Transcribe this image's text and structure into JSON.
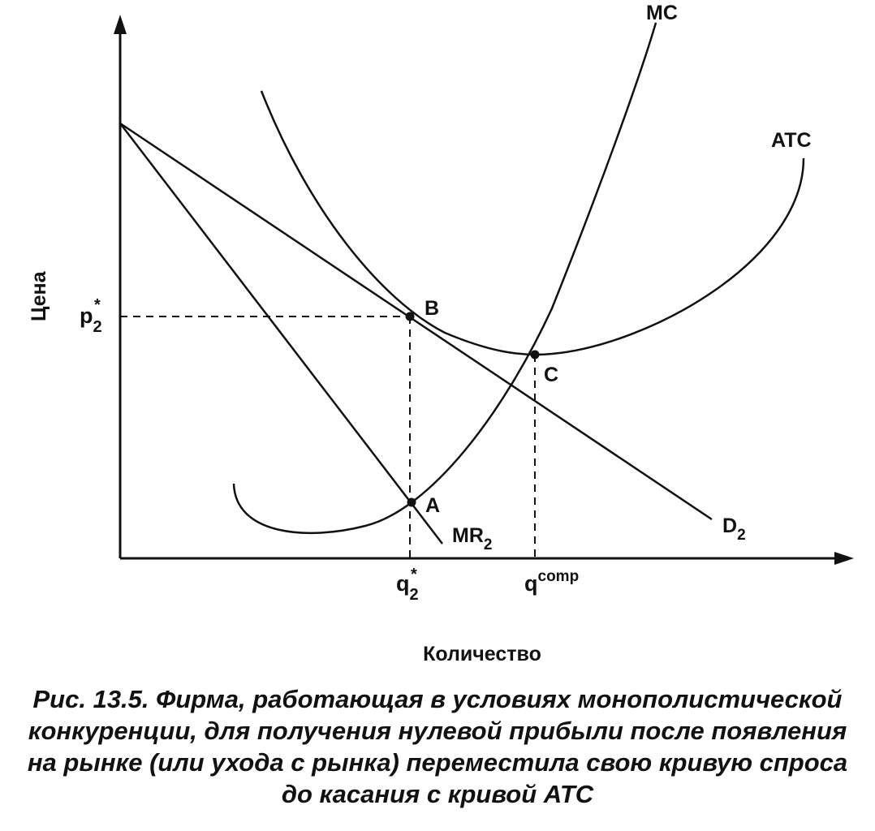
{
  "axes": {
    "y_label": "Цена",
    "x_label": "Количество"
  },
  "curves": {
    "mc": "MC",
    "atc": "ATC",
    "demand": "D",
    "demand_sub": "2",
    "mr": "MR",
    "mr_sub": "2"
  },
  "points": {
    "a": "A",
    "b": "B",
    "c": "C"
  },
  "ticks": {
    "p_base": "p",
    "p_sub": "2",
    "p_sup": "*",
    "q_base": "q",
    "q_sub": "2",
    "q_sup": "*",
    "qc_base": "q",
    "qc_sup": "comp"
  },
  "caption": {
    "line1": "Рис. 13.5. Фирма, работающая в условиях монополистической",
    "line2": "конкуренции, для получения нулевой прибыли после появления",
    "line3": "на рынке (или ухода с рынка) переместила свою кривую спроса",
    "line4": "до касания с кривой ATC"
  }
}
